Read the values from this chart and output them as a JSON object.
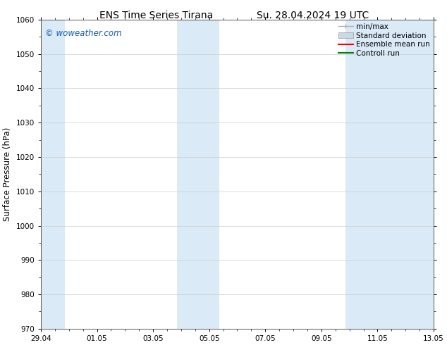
{
  "title_left": "ENS Time Series Tirana",
  "title_right": "Su. 28.04.2024 19 UTC",
  "ylabel": "Surface Pressure (hPa)",
  "ylim": [
    970,
    1060
  ],
  "yticks": [
    970,
    980,
    990,
    1000,
    1010,
    1020,
    1030,
    1040,
    1050,
    1060
  ],
  "xtick_labels": [
    "29.04",
    "01.05",
    "03.05",
    "05.05",
    "07.05",
    "09.05",
    "11.05",
    "13.05"
  ],
  "xtick_positions": [
    0,
    2,
    4,
    6,
    8,
    10,
    12,
    14
  ],
  "shaded_bands": [
    {
      "x_start": -0.15,
      "x_end": 0.85
    },
    {
      "x_start": 4.85,
      "x_end": 5.85
    },
    {
      "x_start": 5.85,
      "x_end": 6.35
    },
    {
      "x_start": 10.85,
      "x_end": 11.85
    },
    {
      "x_start": 11.85,
      "x_end": 14.15
    }
  ],
  "band_color": "#daeaf7",
  "watermark_text": "© woweather.com",
  "watermark_color": "#1a5cb5",
  "legend_entries": [
    {
      "label": "min/max",
      "color": "#b0b0b0",
      "style": "minmax"
    },
    {
      "label": "Standard deviation",
      "color": "#c8daea",
      "style": "box"
    },
    {
      "label": "Ensemble mean run",
      "color": "red",
      "style": "line"
    },
    {
      "label": "Controll run",
      "color": "green",
      "style": "line"
    }
  ],
  "background_color": "#ffffff",
  "axes_bg_color": "#ffffff",
  "grid_color": "#cccccc",
  "title_fontsize": 10,
  "tick_fontsize": 7.5,
  "ylabel_fontsize": 8.5,
  "watermark_fontsize": 8.5,
  "legend_fontsize": 7.5
}
